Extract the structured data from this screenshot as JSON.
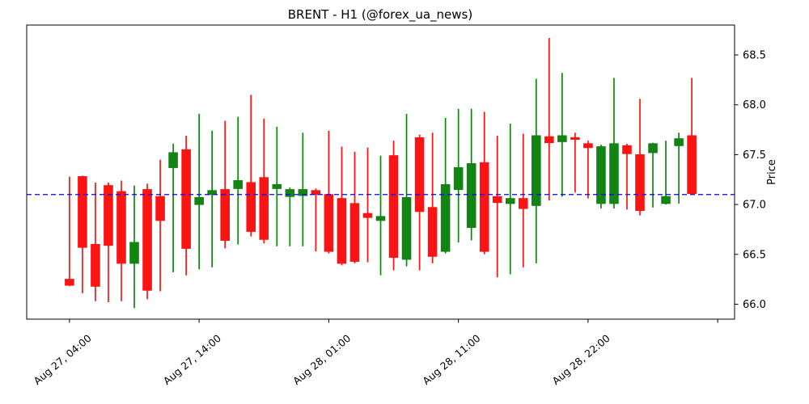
{
  "title": "BRENT - H1 (@forex_ua_news)",
  "chart_data": {
    "type": "candlestick",
    "title": "BRENT - H1 (@forex_ua_news)",
    "symbol": "BRENT",
    "timeframe": "H1",
    "ylabel": "Price",
    "grid": false,
    "legend": "none",
    "ylim": [
      65.85,
      68.8
    ],
    "xlim_index": [
      -3.3,
      51.3
    ],
    "y_ticks": [
      66.0,
      66.5,
      67.0,
      67.5,
      68.0,
      68.5
    ],
    "y_tick_labels": [
      "66.0",
      "66.5",
      "67.0",
      "67.5",
      "68.0",
      "68.5"
    ],
    "x_tick_indices": [
      0,
      10,
      20,
      30,
      40,
      50
    ],
    "x_tick_labels": [
      "Aug 27, 04:00",
      "Aug 27, 14:00",
      "Aug 28, 01:00",
      "Aug 28, 11:00",
      "Aug 28, 22:00",
      ""
    ],
    "reference_line": {
      "price": 67.1,
      "color": "#0000ff",
      "style": "dashed"
    },
    "up_color": "#128412",
    "down_color": "#fb1413",
    "ohlc": [
      [
        66.25,
        67.28,
        66.18,
        66.19
      ],
      [
        67.28,
        67.29,
        66.11,
        66.57
      ],
      [
        66.6,
        67.22,
        66.03,
        66.18
      ],
      [
        67.19,
        67.22,
        66.02,
        66.59
      ],
      [
        67.13,
        67.24,
        66.03,
        66.41
      ],
      [
        66.41,
        67.19,
        65.96,
        66.62
      ],
      [
        67.15,
        67.21,
        66.05,
        66.14
      ],
      [
        67.08,
        67.45,
        66.13,
        66.84
      ],
      [
        67.37,
        67.61,
        66.32,
        67.52
      ],
      [
        67.55,
        67.69,
        66.29,
        66.56
      ],
      [
        67.0,
        67.91,
        66.35,
        67.07
      ],
      [
        67.1,
        67.74,
        66.37,
        67.14
      ],
      [
        67.15,
        67.84,
        66.56,
        66.64
      ],
      [
        67.16,
        67.88,
        66.6,
        67.24
      ],
      [
        67.22,
        68.1,
        66.68,
        66.73
      ],
      [
        67.27,
        67.86,
        66.61,
        66.65
      ],
      [
        67.16,
        67.78,
        66.58,
        67.2
      ],
      [
        67.08,
        67.17,
        66.58,
        67.15
      ],
      [
        67.09,
        67.72,
        66.58,
        67.15
      ],
      [
        67.14,
        67.16,
        66.53,
        67.1
      ],
      [
        67.1,
        67.74,
        66.51,
        66.53
      ],
      [
        67.06,
        67.58,
        66.39,
        66.41
      ],
      [
        67.01,
        67.53,
        66.41,
        66.43
      ],
      [
        66.91,
        67.57,
        66.42,
        66.87
      ],
      [
        66.84,
        67.49,
        66.29,
        66.88
      ],
      [
        67.49,
        67.64,
        66.34,
        66.47
      ],
      [
        66.45,
        67.91,
        66.38,
        67.07
      ],
      [
        67.67,
        67.7,
        66.34,
        66.93
      ],
      [
        66.97,
        67.72,
        66.41,
        66.48
      ],
      [
        66.53,
        67.87,
        66.51,
        67.2
      ],
      [
        67.15,
        67.96,
        66.62,
        67.37
      ],
      [
        66.77,
        67.96,
        66.64,
        67.41
      ],
      [
        67.42,
        67.93,
        66.5,
        66.53
      ],
      [
        67.08,
        67.69,
        66.27,
        67.02
      ],
      [
        67.01,
        67.81,
        66.3,
        67.06
      ],
      [
        67.06,
        67.71,
        66.37,
        66.96
      ],
      [
        66.99,
        68.26,
        66.41,
        67.69
      ],
      [
        67.68,
        68.67,
        67.04,
        67.62
      ],
      [
        67.63,
        68.32,
        67.08,
        67.69
      ],
      [
        67.67,
        67.72,
        67.12,
        67.66
      ],
      [
        67.61,
        67.64,
        67.06,
        67.57
      ],
      [
        67.01,
        67.6,
        66.96,
        67.58
      ],
      [
        67.01,
        68.27,
        66.96,
        67.61
      ],
      [
        67.59,
        67.61,
        66.95,
        67.51
      ],
      [
        67.5,
        68.06,
        66.89,
        66.94
      ],
      [
        67.52,
        67.62,
        66.97,
        67.61
      ],
      [
        67.01,
        67.64,
        67.0,
        67.08
      ],
      [
        67.59,
        67.72,
        67.01,
        67.66
      ],
      [
        67.69,
        68.27,
        67.1,
        67.11
      ]
    ]
  }
}
